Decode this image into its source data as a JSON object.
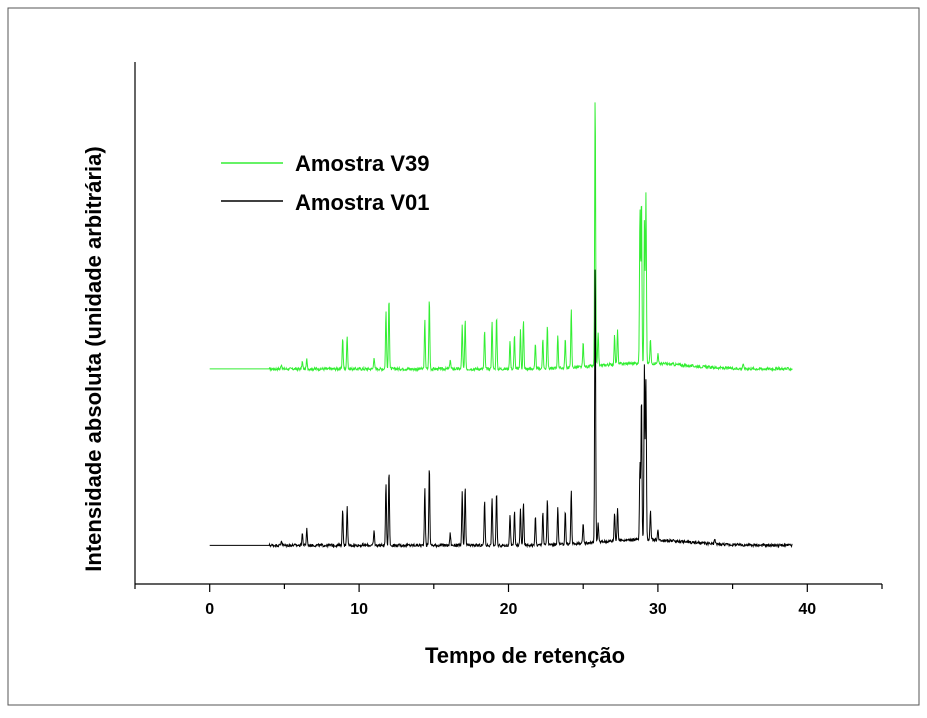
{
  "chart_data": {
    "type": "line",
    "title": "",
    "xlabel": "Tempo de retenção",
    "ylabel": "Intensidade absoluta (unidade arbitrária)",
    "xlim": [
      -5,
      45
    ],
    "x_ticks": [
      0,
      10,
      20,
      30,
      40
    ],
    "y_ticks_shown": false,
    "grid": false,
    "legend": {
      "placement": "top-left"
    },
    "series": [
      {
        "name": "Amostra V39",
        "color": "#33ee33",
        "x_range": [
          0,
          39
        ],
        "baseline": 0.365,
        "peaks": [
          [
            4.8,
            0.01
          ],
          [
            6.2,
            0.015
          ],
          [
            6.5,
            0.02
          ],
          [
            8.9,
            0.065
          ],
          [
            9.2,
            0.07
          ],
          [
            11.0,
            0.025
          ],
          [
            11.8,
            0.12
          ],
          [
            12.0,
            0.15
          ],
          [
            14.4,
            0.1
          ],
          [
            14.7,
            0.145
          ],
          [
            16.1,
            0.02
          ],
          [
            16.9,
            0.09
          ],
          [
            17.1,
            0.1
          ],
          [
            18.4,
            0.08
          ],
          [
            18.9,
            0.1
          ],
          [
            19.2,
            0.11
          ],
          [
            20.1,
            0.06
          ],
          [
            20.4,
            0.07
          ],
          [
            20.8,
            0.08
          ],
          [
            21.0,
            0.1
          ],
          [
            21.8,
            0.05
          ],
          [
            22.3,
            0.06
          ],
          [
            22.6,
            0.09
          ],
          [
            23.3,
            0.07
          ],
          [
            23.8,
            0.06
          ],
          [
            24.2,
            0.12
          ],
          [
            25.0,
            0.05
          ],
          [
            25.8,
            0.56
          ],
          [
            26.0,
            0.07
          ],
          [
            27.1,
            0.06
          ],
          [
            27.3,
            0.07
          ],
          [
            28.8,
            0.32
          ],
          [
            28.9,
            0.35
          ],
          [
            29.1,
            0.3
          ],
          [
            29.2,
            0.35
          ],
          [
            29.5,
            0.05
          ],
          [
            30.0,
            0.02
          ],
          [
            35.7,
            0.01
          ]
        ]
      },
      {
        "name": "Amostra V01",
        "color": "#000000",
        "x_range": [
          0,
          39
        ],
        "baseline": 0.0,
        "peaks": [
          [
            4.8,
            0.01
          ],
          [
            6.2,
            0.025
          ],
          [
            6.5,
            0.035
          ],
          [
            8.9,
            0.075
          ],
          [
            9.2,
            0.08
          ],
          [
            11.0,
            0.03
          ],
          [
            11.8,
            0.13
          ],
          [
            12.0,
            0.155
          ],
          [
            14.4,
            0.12
          ],
          [
            14.7,
            0.165
          ],
          [
            16.1,
            0.025
          ],
          [
            16.9,
            0.11
          ],
          [
            17.1,
            0.12
          ],
          [
            18.4,
            0.095
          ],
          [
            18.9,
            0.1
          ],
          [
            19.2,
            0.11
          ],
          [
            20.1,
            0.065
          ],
          [
            20.4,
            0.07
          ],
          [
            20.8,
            0.075
          ],
          [
            21.0,
            0.09
          ],
          [
            21.8,
            0.06
          ],
          [
            22.3,
            0.07
          ],
          [
            22.6,
            0.095
          ],
          [
            23.3,
            0.08
          ],
          [
            23.8,
            0.07
          ],
          [
            24.2,
            0.11
          ],
          [
            25.0,
            0.04
          ],
          [
            25.8,
            0.58
          ],
          [
            26.0,
            0.04
          ],
          [
            27.1,
            0.06
          ],
          [
            27.3,
            0.07
          ],
          [
            28.8,
            0.16
          ],
          [
            28.9,
            0.3
          ],
          [
            29.1,
            0.37
          ],
          [
            29.2,
            0.33
          ],
          [
            29.5,
            0.06
          ],
          [
            30.0,
            0.02
          ],
          [
            33.8,
            0.01
          ]
        ]
      }
    ]
  }
}
